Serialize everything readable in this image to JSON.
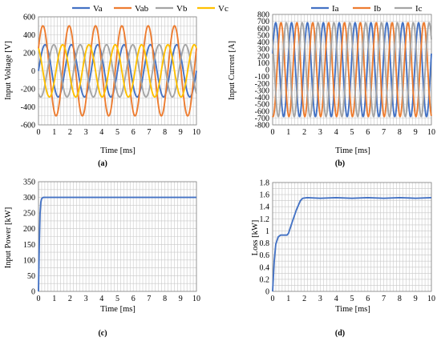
{
  "chart_data": [
    {
      "type": "line",
      "caption": "(a)",
      "xlabel": "Time [ms]",
      "ylabel": "Input Voltage [V]",
      "xlim": [
        0,
        10
      ],
      "ylim": [
        -600,
        600
      ],
      "xticks": [
        0,
        1,
        2,
        3,
        4,
        5,
        6,
        7,
        8,
        9,
        10
      ],
      "yticks": [
        -600,
        -400,
        -200,
        0,
        200,
        400,
        600
      ],
      "grid": true,
      "legend": "top",
      "waveform": {
        "frequency_hz": 600,
        "sampling": "sinusoidal"
      },
      "series": [
        {
          "name": "Va",
          "amplitude": 290,
          "phase_deg": 0,
          "color": "#4472C4"
        },
        {
          "name": "Vab",
          "amplitude": 500,
          "phase_deg": 30,
          "color": "#ED7D31"
        },
        {
          "name": "Vb",
          "amplitude": 290,
          "phase_deg": -120,
          "color": "#A5A5A5"
        },
        {
          "name": "Vc",
          "amplitude": 290,
          "phase_deg": 120,
          "color": "#FFC000"
        }
      ]
    },
    {
      "type": "line",
      "caption": "(b)",
      "xlabel": "Time [ms]",
      "ylabel": "Input Current [A]",
      "xlim": [
        0,
        10
      ],
      "ylim": [
        -800,
        800
      ],
      "xticks": [
        0,
        1,
        2,
        3,
        4,
        5,
        6,
        7,
        8,
        9,
        10
      ],
      "yticks": [
        -800,
        -700,
        -600,
        -500,
        -400,
        -300,
        -200,
        -100,
        0,
        100,
        200,
        300,
        400,
        500,
        600,
        700,
        800
      ],
      "grid": true,
      "legend": "top",
      "waveform": {
        "frequency_hz": 1000,
        "sampling": "sinusoidal"
      },
      "series": [
        {
          "name": "Ia",
          "amplitude": 680,
          "phase_deg": 20,
          "color": "#4472C4"
        },
        {
          "name": "Ib",
          "amplitude": 680,
          "phase_deg": -100,
          "color": "#ED7D31"
        },
        {
          "name": "Ic",
          "amplitude": 680,
          "phase_deg": 140,
          "color": "#A5A5A5"
        }
      ]
    },
    {
      "type": "line",
      "caption": "(c)",
      "xlabel": "Time [ms]",
      "ylabel": "Input Power [kW]",
      "xlim": [
        0,
        10
      ],
      "ylim": [
        0,
        350
      ],
      "xticks": [
        0,
        1,
        2,
        3,
        4,
        5,
        6,
        7,
        8,
        9,
        10
      ],
      "yticks": [
        0,
        50,
        100,
        150,
        200,
        250,
        300,
        350
      ],
      "grid": true,
      "series": [
        {
          "name": "",
          "color": "#4472C4",
          "points": [
            [
              0,
              0
            ],
            [
              0.05,
              150
            ],
            [
              0.1,
              250
            ],
            [
              0.15,
              285
            ],
            [
              0.2,
              296
            ],
            [
              0.3,
              300
            ],
            [
              10,
              300
            ]
          ]
        }
      ]
    },
    {
      "type": "line",
      "caption": "(d)",
      "xlabel": "Time [ms]",
      "ylabel": "Loss [kW]",
      "xlim": [
        0,
        10
      ],
      "ylim": [
        0,
        1.8
      ],
      "xticks": [
        0,
        1,
        2,
        3,
        4,
        5,
        6,
        7,
        8,
        9,
        10
      ],
      "yticks": [
        0,
        0.2,
        0.4,
        0.6,
        0.8,
        1,
        1.2,
        1.4,
        1.6,
        1.8
      ],
      "grid": true,
      "series": [
        {
          "name": "",
          "color": "#4472C4",
          "points": [
            [
              0,
              0
            ],
            [
              0.1,
              0.5
            ],
            [
              0.2,
              0.78
            ],
            [
              0.35,
              0.9
            ],
            [
              0.5,
              0.93
            ],
            [
              0.9,
              0.93
            ],
            [
              1.0,
              0.96
            ],
            [
              1.2,
              1.12
            ],
            [
              1.5,
              1.35
            ],
            [
              1.75,
              1.5
            ],
            [
              1.9,
              1.54
            ],
            [
              2.2,
              1.55
            ],
            [
              3,
              1.54
            ],
            [
              4,
              1.55
            ],
            [
              5,
              1.54
            ],
            [
              6,
              1.55
            ],
            [
              7,
              1.54
            ],
            [
              8,
              1.55
            ],
            [
              9,
              1.54
            ],
            [
              10,
              1.55
            ]
          ]
        }
      ]
    }
  ]
}
